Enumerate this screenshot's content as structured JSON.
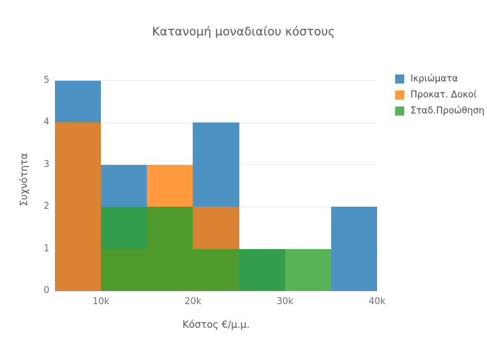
{
  "title": "Κατανομή μοναδιαίου κόστους",
  "chart_data": {
    "type": "histogram",
    "barmode": "overlay",
    "opacity": 0.8,
    "title": "Κατανομή μοναδιαίου κόστους",
    "xlabel": "Κόστος €/μ.μ.",
    "ylabel": "Συχνότητα",
    "bin_edges": [
      5000,
      10000,
      15000,
      20000,
      25000,
      30000,
      35000,
      40000
    ],
    "series": [
      {
        "key": "ikriomata",
        "name": "Ικριώματα",
        "color": "#1f77b4",
        "counts": [
          5,
          3,
          2,
          4,
          1,
          0,
          2
        ]
      },
      {
        "key": "prokat-dokoi",
        "name": "Προκατ. Δοκοί",
        "color": "#ff7f0e",
        "counts": [
          4,
          1,
          3,
          2,
          0,
          0,
          0
        ]
      },
      {
        "key": "stad-proothisi",
        "name": "Σταδ.Προώθηση",
        "color": "#2ca02c",
        "counts": [
          0,
          2,
          2,
          1,
          1,
          1,
          0
        ]
      }
    ],
    "x_ticks": [
      {
        "value": 10000,
        "label": "10k"
      },
      {
        "value": 20000,
        "label": "20k"
      },
      {
        "value": 30000,
        "label": "30k"
      },
      {
        "value": 40000,
        "label": "40k"
      }
    ],
    "y_ticks": [
      0,
      1,
      2,
      3,
      4,
      5
    ],
    "xlim": [
      5000,
      40000
    ],
    "ylim": [
      0,
      5.26
    ],
    "grid": "horizontal-only",
    "legend_position": "top-right"
  },
  "colors": {
    "background": "#ffffff",
    "gridline": "#ebebee",
    "axis_line": "#d6d6db",
    "tick_label": "#6c6c74",
    "axis_title": "#55555f",
    "chart_title": "#55555f",
    "legend_text": "#484850"
  }
}
